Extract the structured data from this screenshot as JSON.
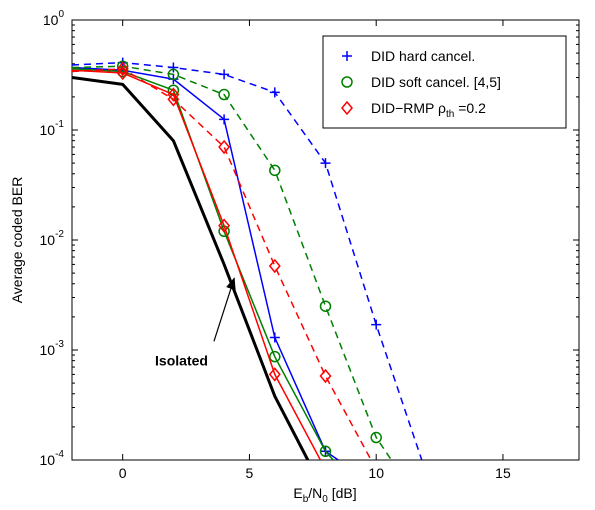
{
  "chart_data": {
    "type": "line",
    "title": "",
    "xlabel": "E_b/N_0 [dB]",
    "xlabel_parts": {
      "main": "E",
      "sub1": "b",
      "mid": "/N",
      "sub2": "0",
      "tail": " [dB]"
    },
    "ylabel": "Average coded BER",
    "xlim": [
      -2,
      18
    ],
    "ylim": [
      0.0001,
      1
    ],
    "yscale": "log",
    "grid": false,
    "legend_position": "top-right",
    "x_ticks": [
      {
        "value": 0,
        "label": "0"
      },
      {
        "value": 5,
        "label": "5"
      },
      {
        "value": 10,
        "label": "10"
      },
      {
        "value": 15,
        "label": "15"
      }
    ],
    "y_ticks": [
      {
        "value": 1,
        "base": "10",
        "exp": "0"
      },
      {
        "value": 0.1,
        "base": "10",
        "exp": "-1"
      },
      {
        "value": 0.01,
        "base": "10",
        "exp": "-2"
      },
      {
        "value": 0.001,
        "base": "10",
        "exp": "-3"
      },
      {
        "value": 0.0001,
        "base": "10",
        "exp": "-4"
      }
    ],
    "series": [
      {
        "name": "DID hard cancel.",
        "legend": {
          "text": "DID hard cancel."
        },
        "color": "#0000ff",
        "marker": "plus",
        "dash": "solid",
        "x": [
          -2,
          0,
          2,
          4,
          6,
          8,
          8.5
        ],
        "y": [
          0.37,
          0.35,
          0.29,
          0.125,
          0.0013,
          0.00012,
          0.0001
        ]
      },
      {
        "color": "#0000ff",
        "marker": "plus",
        "dash": "dashed",
        "x": [
          -2,
          0,
          2,
          4,
          6,
          8,
          10,
          11.8
        ],
        "y": [
          0.39,
          0.41,
          0.37,
          0.32,
          0.22,
          0.05,
          0.0017,
          0.0001
        ]
      },
      {
        "name": "DID soft cancel. [4,5]",
        "legend": {
          "text": "DID soft cancel. [4,5]"
        },
        "color": "#008000",
        "marker": "circle",
        "dash": "solid",
        "x": [
          -2,
          0,
          2,
          4,
          6,
          8,
          8.3
        ],
        "y": [
          0.36,
          0.34,
          0.23,
          0.012,
          0.00087,
          0.00012,
          0.0001
        ]
      },
      {
        "color": "#008000",
        "marker": "circle",
        "dash": "dashed",
        "x": [
          -2,
          0,
          2,
          4,
          6,
          8,
          10,
          10.6
        ],
        "y": [
          0.37,
          0.38,
          0.32,
          0.21,
          0.043,
          0.0025,
          0.00016,
          0.0001
        ]
      },
      {
        "name": "DID−RMP ρth =0.2",
        "legend": {
          "text": "DID−RMP ρ",
          "sub": "th",
          "tail": " =0.2"
        },
        "color": "#ff0000",
        "marker": "diamond",
        "dash": "solid",
        "x": [
          -2,
          0,
          2,
          4,
          6,
          7.8
        ],
        "y": [
          0.35,
          0.33,
          0.21,
          0.0135,
          0.0006,
          0.0001
        ]
      },
      {
        "color": "#ff0000",
        "marker": "diamond",
        "dash": "dashed",
        "x": [
          -2,
          0,
          2,
          4,
          6,
          8,
          9.8
        ],
        "y": [
          0.34,
          0.36,
          0.19,
          0.07,
          0.0058,
          0.00058,
          0.0001
        ]
      },
      {
        "name": "Isolated",
        "color": "#000000",
        "marker": "none",
        "dash": "solid",
        "width": 3,
        "x": [
          -2,
          0,
          2,
          4,
          6,
          7.3
        ],
        "y": [
          0.3,
          0.26,
          0.08,
          0.006,
          0.00038,
          0.0001
        ]
      }
    ],
    "annotations": [
      {
        "text": "Isolated",
        "from": [
          3.6,
          0.0012
        ],
        "to": [
          4.4,
          0.0045
        ]
      }
    ]
  }
}
